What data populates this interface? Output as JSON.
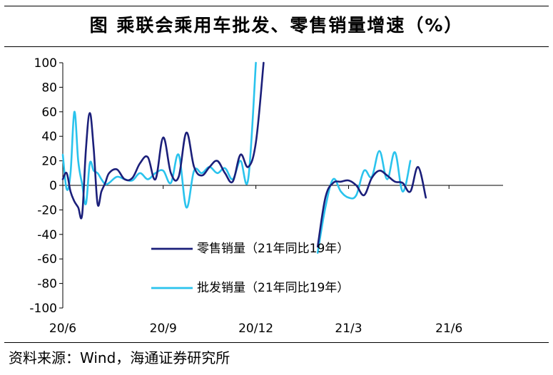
{
  "header": {
    "title": "图  乘联会乘用车批发、零售销量增速（%）"
  },
  "footer": {
    "source": "资料来源：Wind，海通证券研究所"
  },
  "chart_data": {
    "type": "line",
    "title": "乘联会乘用车批发、零售销量增速（%）",
    "ylabel": "%",
    "ylim": [
      -100,
      100
    ],
    "yticks": [
      100,
      80,
      60,
      40,
      20,
      0,
      -20,
      -40,
      -60,
      -80,
      -100
    ],
    "xlim": [
      0,
      57
    ],
    "xticks": [
      {
        "x": 0,
        "label": "20/6"
      },
      {
        "x": 13,
        "label": "20/9"
      },
      {
        "x": 25,
        "label": "20/12"
      },
      {
        "x": 37,
        "label": "21/3"
      },
      {
        "x": 50,
        "label": "21/6"
      }
    ],
    "grid": false,
    "legend": "center",
    "series": [
      {
        "name": "零售销量（21年同比19年）",
        "color": "#1b1f7a",
        "x": [
          0,
          0.5,
          1,
          1.5,
          2,
          2.5,
          3,
          3.5,
          4,
          4.5,
          5,
          5.5,
          6,
          7,
          8,
          9,
          10,
          11,
          12,
          13,
          14,
          15,
          16,
          17,
          18,
          19,
          20,
          21,
          22,
          23,
          24,
          25,
          26,
          27,
          28,
          29,
          30,
          31,
          32,
          33,
          34,
          35,
          36,
          37,
          38,
          39,
          40,
          41,
          42,
          43,
          44,
          45,
          46,
          47,
          48,
          49,
          50
        ],
        "y": [
          5,
          10,
          -5,
          -13,
          -18,
          -24,
          30,
          59,
          30,
          -15,
          -5,
          2,
          10,
          13,
          5,
          6,
          18,
          23,
          5,
          39,
          10,
          7,
          43,
          15,
          8,
          15,
          20,
          10,
          3,
          25,
          15,
          35,
          100,
          null,
          null,
          null,
          null,
          null,
          null,
          -50,
          -10,
          2,
          3,
          4,
          0,
          -8,
          6,
          12,
          8,
          3,
          2,
          -5,
          15,
          -10,
          null,
          null,
          null
        ],
        "y_note": "values past the top of the axis are clipped at 100"
      },
      {
        "name": "批发销量（21年同比19年）",
        "color": "#2ac3ed",
        "x": [
          0,
          0.5,
          1,
          1.5,
          2,
          2.5,
          3,
          3.5,
          4,
          4.5,
          5,
          5.5,
          6,
          7,
          8,
          9,
          10,
          11,
          12,
          13,
          14,
          15,
          16,
          17,
          18,
          19,
          20,
          21,
          22,
          23,
          24,
          25,
          26,
          27,
          28,
          29,
          30,
          31,
          32,
          33,
          34,
          35,
          36,
          37,
          38,
          39,
          40,
          41,
          42,
          43,
          44,
          45,
          46,
          47,
          48,
          49,
          50
        ],
        "y": [
          25,
          -3,
          10,
          60,
          20,
          1,
          -15,
          18,
          12,
          10,
          5,
          1,
          2,
          7,
          5,
          4,
          10,
          5,
          10,
          12,
          2,
          25,
          -18,
          12,
          10,
          15,
          10,
          14,
          5,
          20,
          5,
          100,
          null,
          100,
          null,
          null,
          null,
          null,
          null,
          -55,
          -18,
          5,
          -5,
          -10,
          -8,
          12,
          7,
          28,
          5,
          27,
          -5,
          20,
          null,
          null,
          null,
          null,
          null
        ],
        "y_note": "values past the top of the axis are clipped at 100"
      }
    ]
  }
}
